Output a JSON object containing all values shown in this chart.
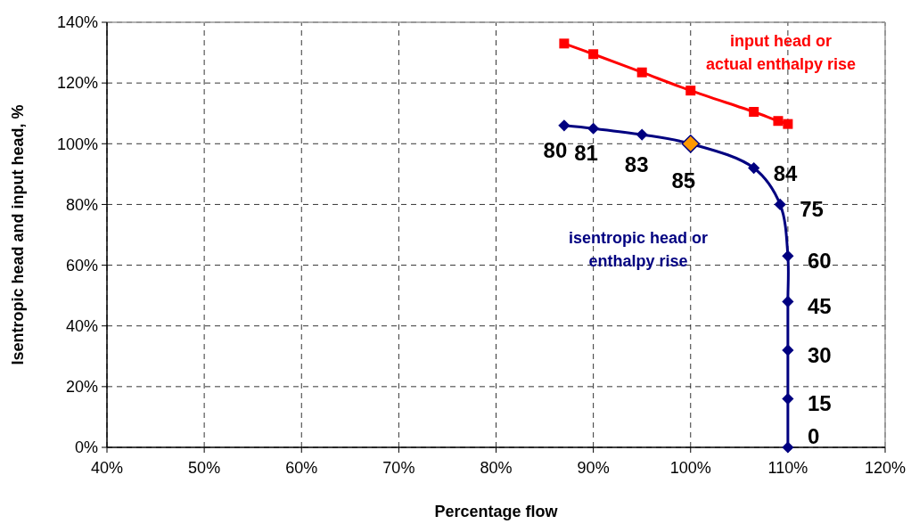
{
  "chart_data": {
    "type": "line",
    "xlabel": "Percentage flow",
    "ylabel": "Isentropic head and input head, %",
    "xlim": [
      40,
      120
    ],
    "xticks": [
      {
        "value": 40,
        "label": "40%"
      },
      {
        "value": 50,
        "label": "50%"
      },
      {
        "value": 60,
        "label": "60%"
      },
      {
        "value": 70,
        "label": "70%"
      },
      {
        "value": 80,
        "label": "80%"
      },
      {
        "value": 90,
        "label": "90%"
      },
      {
        "value": 100,
        "label": "100%"
      },
      {
        "value": 110,
        "label": "110%"
      },
      {
        "value": 120,
        "label": "120%"
      }
    ],
    "ylim": [
      0,
      140
    ],
    "yticks": [
      {
        "value": 0,
        "label": "0%"
      },
      {
        "value": 20,
        "label": "20%"
      },
      {
        "value": 40,
        "label": "40%"
      },
      {
        "value": 60,
        "label": "60%"
      },
      {
        "value": 80,
        "label": "80%"
      },
      {
        "value": 100,
        "label": "100%"
      },
      {
        "value": 120,
        "label": "120%"
      },
      {
        "value": 140,
        "label": "140%"
      }
    ],
    "grid": true,
    "annotations": [
      {
        "text": "80",
        "x": 87,
        "y": 106
      },
      {
        "text": "81",
        "x": 90,
        "y": 105
      },
      {
        "text": "83",
        "x": 95,
        "y": 103
      },
      {
        "text": "85",
        "x": 100,
        "y": 100
      },
      {
        "text": "84",
        "x": 106.5,
        "y": 92
      },
      {
        "text": "75",
        "x": 109.2,
        "y": 80
      },
      {
        "text": "60",
        "x": 110,
        "y": 63
      },
      {
        "text": "45",
        "x": 110,
        "y": 48
      },
      {
        "text": "30",
        "x": 110,
        "y": 32
      },
      {
        "text": "15",
        "x": 110,
        "y": 16
      },
      {
        "text": "0",
        "x": 110,
        "y": 0
      }
    ],
    "series": [
      {
        "name": "input head or\nactual enthalpy rise",
        "color": "#ff0000",
        "marker": "square",
        "x": [
          87,
          90,
          95,
          100,
          106.5,
          109,
          110
        ],
        "values": [
          133,
          129.5,
          123.5,
          117.5,
          110.5,
          107.5,
          106.5
        ]
      },
      {
        "name": "isentropic head or\nenthalpy rise",
        "color": "#000080",
        "marker": "diamond",
        "x": [
          87,
          90,
          95,
          100,
          106.5,
          109.2,
          110,
          110,
          110,
          110,
          110
        ],
        "values": [
          106,
          105,
          103,
          100,
          92,
          80,
          63,
          48,
          32,
          16,
          0
        ],
        "colors": [
          "#000080",
          "#000080",
          "#000080",
          "#ff9900",
          "#000080",
          "#000080",
          "#000080",
          "#000080",
          "#000080",
          "#000080",
          "#000080"
        ]
      }
    ]
  }
}
